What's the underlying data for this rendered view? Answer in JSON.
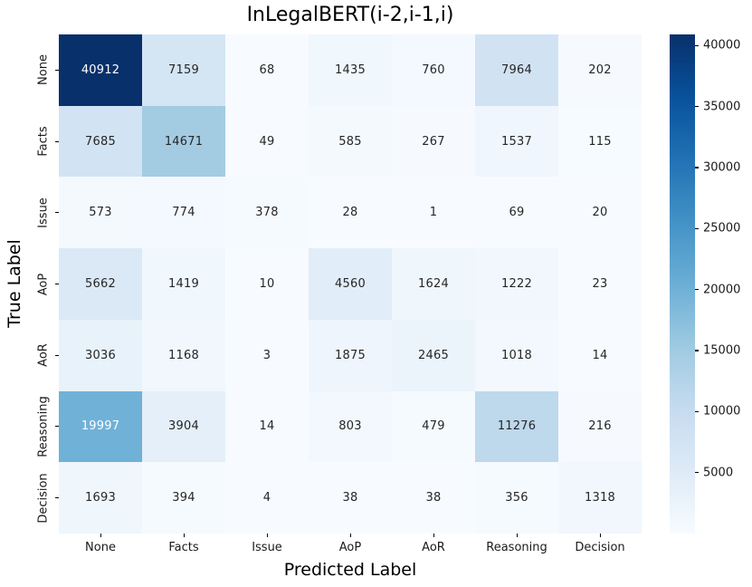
{
  "title": "InLegalBERT(i-2,i-1,i)",
  "chart_data": {
    "type": "heatmap",
    "title": "InLegalBERT(i-2,i-1,i)",
    "xlabel": "Predicted Label",
    "ylabel": "True Label",
    "x_categories": [
      "None",
      "Facts",
      "Issue",
      "AoP",
      "AoR",
      "Reasoning",
      "Decision"
    ],
    "y_categories": [
      "None",
      "Facts",
      "Issue",
      "AoP",
      "AoR",
      "Reasoning",
      "Decision"
    ],
    "rows": [
      [
        40912,
        7159,
        68,
        1435,
        760,
        7964,
        202
      ],
      [
        7685,
        14671,
        49,
        585,
        267,
        1537,
        115
      ],
      [
        573,
        774,
        378,
        28,
        1,
        69,
        20
      ],
      [
        5662,
        1419,
        10,
        4560,
        1624,
        1222,
        23
      ],
      [
        3036,
        1168,
        3,
        1875,
        2465,
        1018,
        14
      ],
      [
        19997,
        3904,
        14,
        803,
        479,
        11276,
        216
      ],
      [
        1693,
        394,
        4,
        38,
        38,
        356,
        1318
      ]
    ],
    "vmin": 1,
    "vmax": 40912,
    "colormap": {
      "name": "Blues",
      "anchors": [
        "#f7fbff",
        "#deebf7",
        "#c6dbef",
        "#9ecae1",
        "#6baed6",
        "#4292c6",
        "#2171b5",
        "#08519c",
        "#08306b"
      ]
    },
    "colorbar_ticks": [
      5000,
      10000,
      15000,
      20000,
      25000,
      30000,
      35000,
      40000
    ],
    "colorbar_position": "right",
    "grid": false,
    "annotation_dark_color": "#262626",
    "annotation_light_color": "#ffffff",
    "tick_color": "#000000"
  }
}
